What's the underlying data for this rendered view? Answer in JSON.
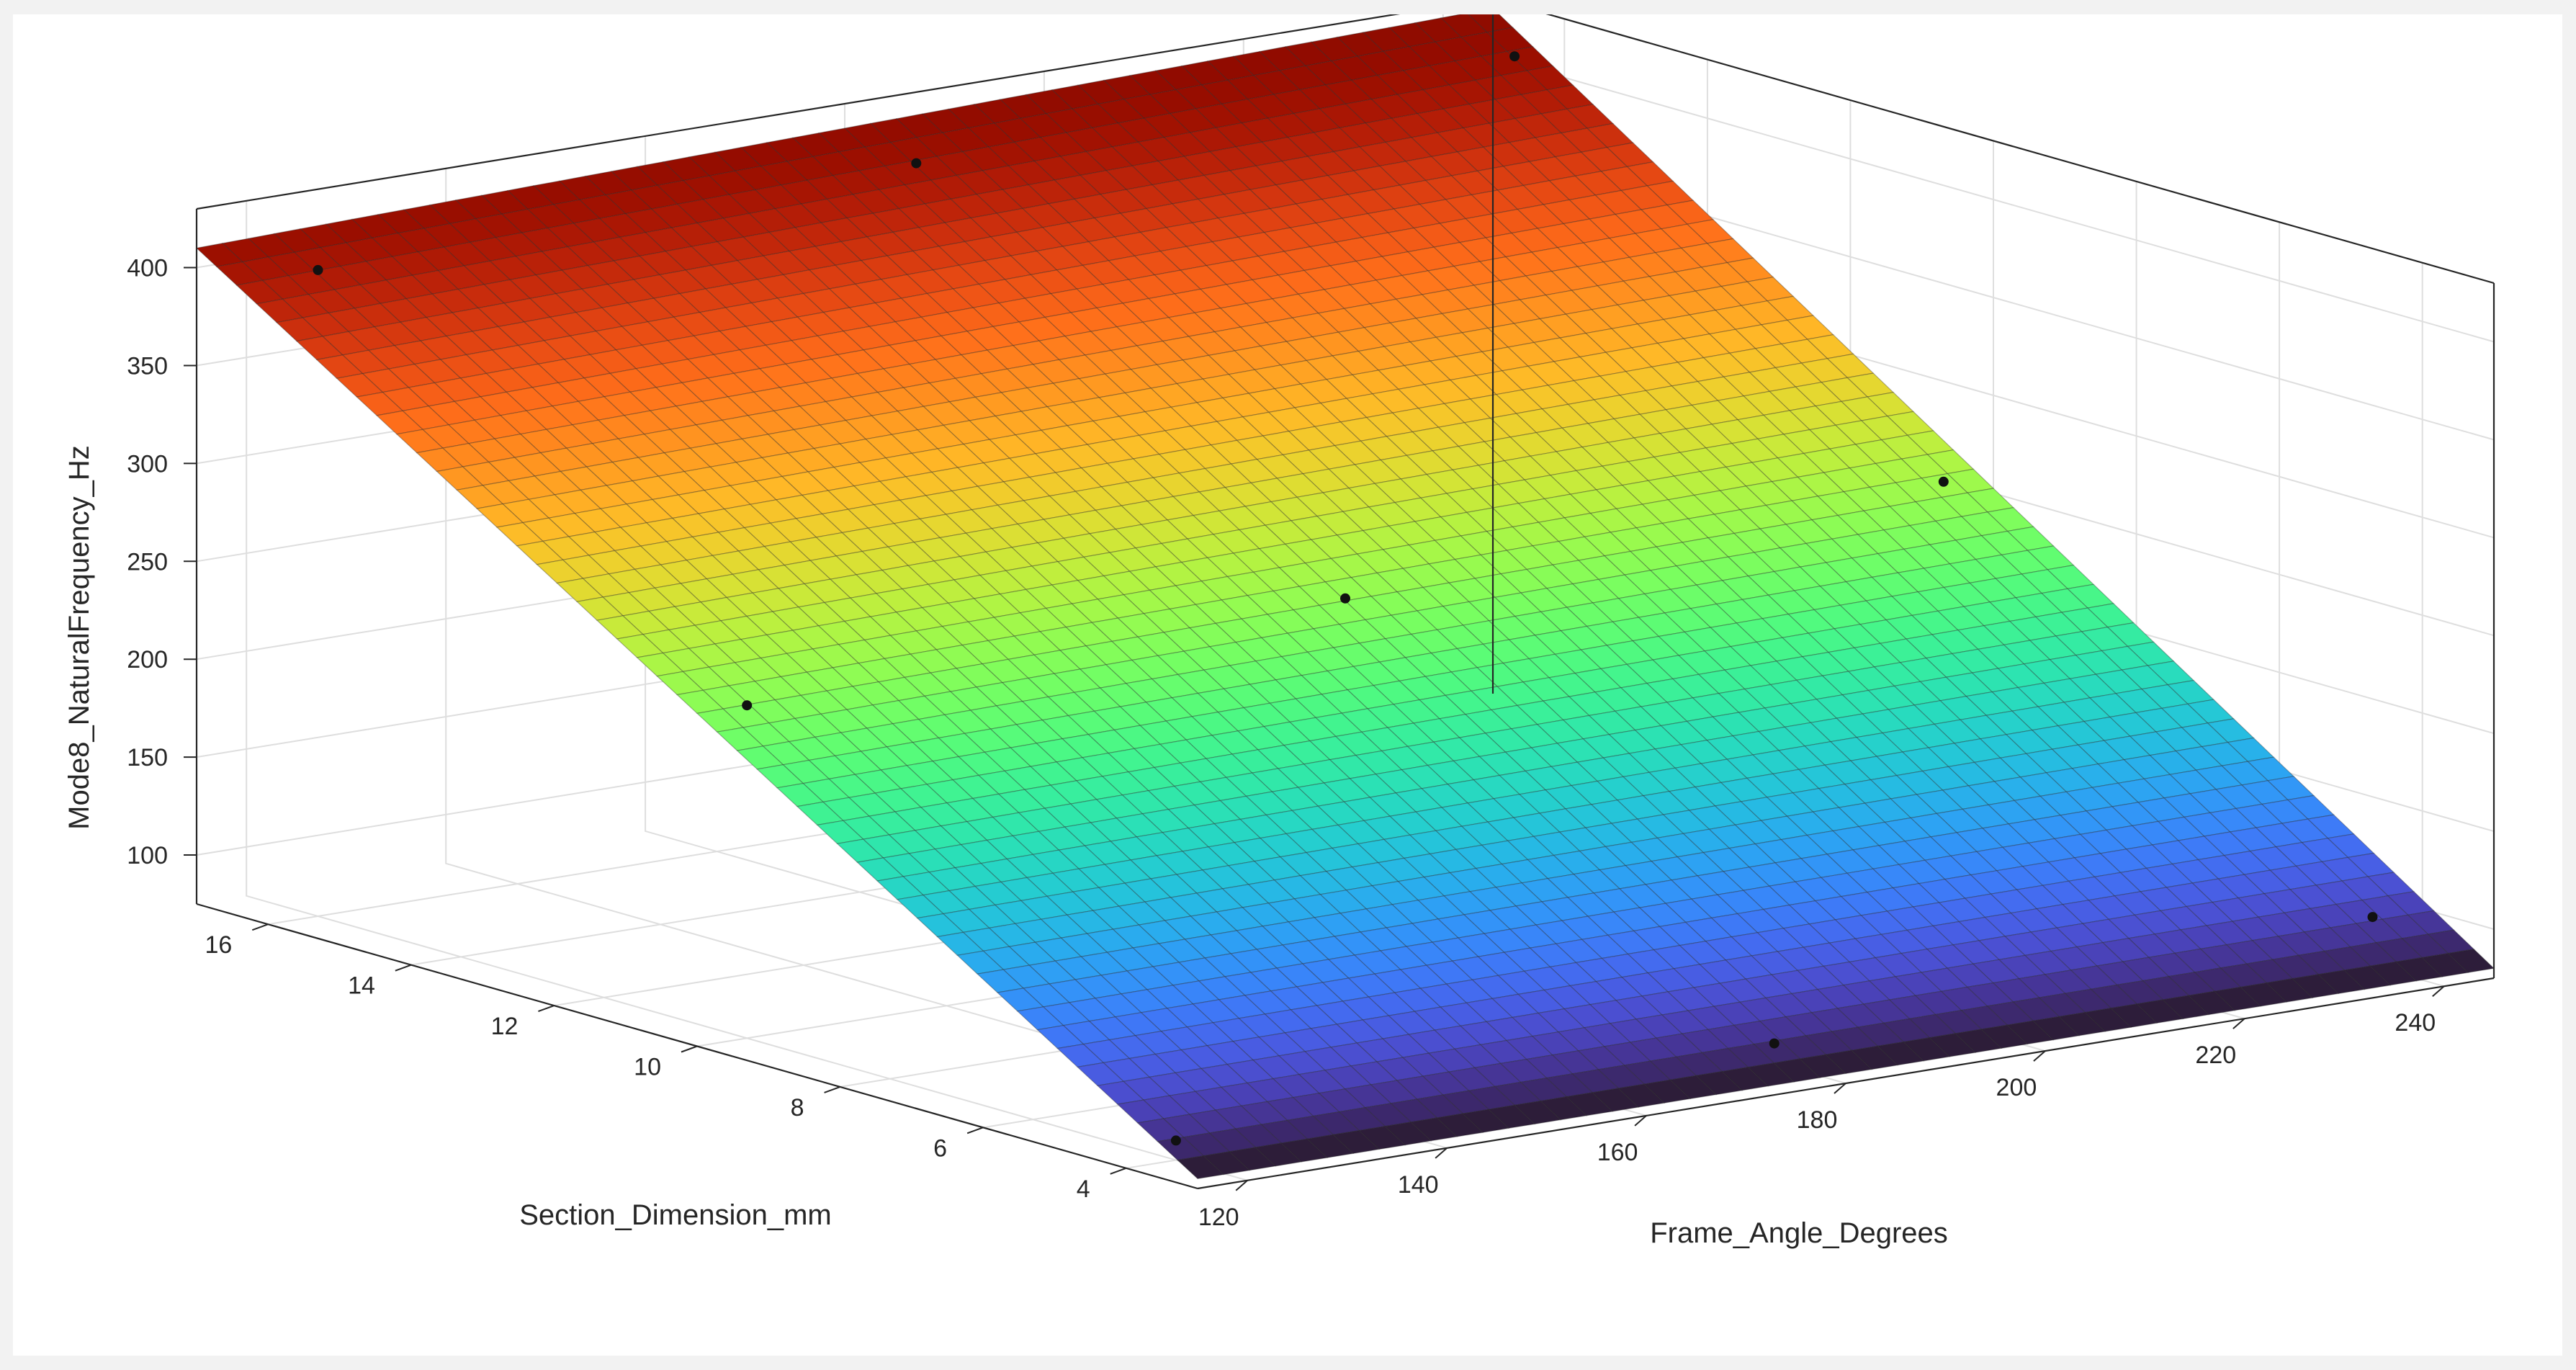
{
  "chart_data": {
    "type": "surface",
    "xlabel": "Frame_Angle_Degrees",
    "ylabel": "Section_Dimension_mm",
    "zlabel": "Mode8_NaturalFrequency_Hz",
    "xlim": [
      115,
      245
    ],
    "ylim": [
      3,
      17
    ],
    "zlim": [
      75,
      430
    ],
    "xticks": [
      "120",
      "140",
      "160",
      "180",
      "200",
      "220",
      "240"
    ],
    "yticks": [
      "4",
      "6",
      "8",
      "10",
      "12",
      "14",
      "16"
    ],
    "zticks": [
      "100",
      "150",
      "200",
      "250",
      "300",
      "350",
      "400"
    ],
    "grid": true,
    "colormap": "turbo",
    "surface_x_range": [
      115,
      245
    ],
    "surface_y_range": [
      3,
      17
    ],
    "surface_corners": {
      "x_min_y_min": 80,
      "x_max_y_min": 80,
      "x_min_y_max": 410,
      "x_max_y_max": 425
    },
    "data_points": [
      {
        "x": 120,
        "y": 4,
        "z": 85
      },
      {
        "x": 180,
        "y": 4,
        "z": 85
      },
      {
        "x": 240,
        "y": 4,
        "z": 100
      },
      {
        "x": 120,
        "y": 10,
        "z": 245
      },
      {
        "x": 180,
        "y": 10,
        "z": 250
      },
      {
        "x": 240,
        "y": 10,
        "z": 260
      },
      {
        "x": 120,
        "y": 16,
        "z": 405
      },
      {
        "x": 180,
        "y": 16,
        "z": 410
      },
      {
        "x": 240,
        "y": 16,
        "z": 415
      }
    ]
  }
}
